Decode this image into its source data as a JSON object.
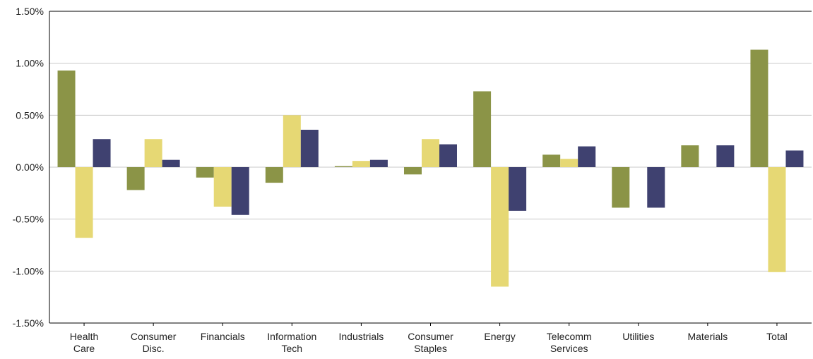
{
  "chart_data": {
    "type": "bar",
    "title": "",
    "xlabel": "",
    "ylabel": "",
    "categories": [
      [
        "Health",
        "Care"
      ],
      [
        "Consumer",
        "Disc."
      ],
      [
        "Financials"
      ],
      [
        "Information",
        "Tech"
      ],
      [
        "Industrials"
      ],
      [
        "Consumer",
        "Staples"
      ],
      [
        "Energy"
      ],
      [
        "Telecomm",
        "Services"
      ],
      [
        "Utilities"
      ],
      [
        "Materials"
      ],
      [
        "Total"
      ]
    ],
    "series": [
      {
        "color": "#8b9447",
        "values": [
          0.93,
          -0.22,
          -0.1,
          -0.15,
          0.01,
          -0.07,
          0.73,
          0.12,
          -0.39,
          0.21,
          1.13
        ]
      },
      {
        "color": "#e6d874",
        "values": [
          -0.68,
          0.27,
          -0.38,
          0.5,
          0.06,
          0.27,
          -1.15,
          0.08,
          0.0,
          0.0,
          -1.01
        ]
      },
      {
        "color": "#3f4170",
        "values": [
          0.27,
          0.07,
          -0.46,
          0.36,
          0.07,
          0.22,
          -0.42,
          0.2,
          -0.39,
          0.21,
          0.16
        ]
      }
    ],
    "ylim": [
      -1.5,
      1.5
    ],
    "yticks": [
      1.5,
      1.0,
      0.5,
      0.0,
      -0.5,
      -1.0,
      -1.5
    ],
    "ytick_labels": [
      "1.50%",
      "1.00%",
      "0.50%",
      "0.00%",
      "-0.50%",
      "-1.00%",
      "-1.50%"
    ],
    "grid": true,
    "legend": "none"
  }
}
